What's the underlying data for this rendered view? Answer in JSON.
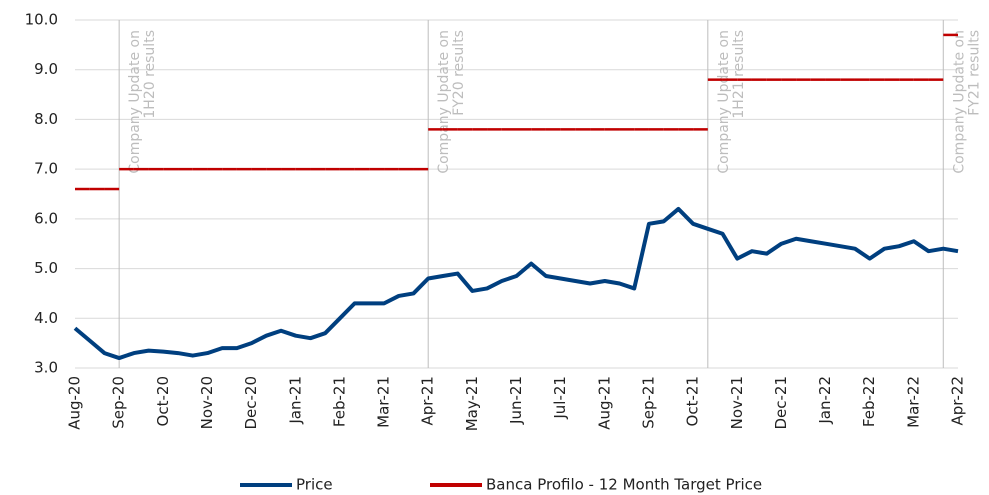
{
  "chart_data": {
    "type": "line",
    "categories": [
      "Aug-20",
      null,
      null,
      "Sep-20",
      null,
      null,
      "Oct-20",
      null,
      null,
      "Nov-20",
      null,
      null,
      "Dec-20",
      null,
      null,
      "Jan-21",
      null,
      null,
      "Feb-21",
      null,
      null,
      "Mar-21",
      null,
      null,
      "Apr-21",
      null,
      null,
      "May-21",
      null,
      null,
      "Jun-21",
      null,
      null,
      "Jul-21",
      null,
      null,
      "Aug-21",
      null,
      null,
      "Sep-21",
      null,
      null,
      "Oct-21",
      null,
      null,
      "Nov-21",
      null,
      null,
      "Dec-21",
      null,
      null,
      "Jan-22",
      null,
      null,
      "Feb-22",
      null,
      null,
      "Mar-22",
      null,
      null,
      "Apr-22"
    ],
    "series": [
      {
        "name": "Price",
        "color": "#003f7f",
        "style": "line",
        "values": [
          3.8,
          3.55,
          3.3,
          3.2,
          3.3,
          3.35,
          3.33,
          3.3,
          3.25,
          3.3,
          3.4,
          3.4,
          3.5,
          3.65,
          3.75,
          3.65,
          3.6,
          3.7,
          4.0,
          4.3,
          4.3,
          4.3,
          4.45,
          4.5,
          4.8,
          4.85,
          4.9,
          4.55,
          4.6,
          4.75,
          4.85,
          5.1,
          4.85,
          4.8,
          4.75,
          4.7,
          4.75,
          4.7,
          4.6,
          5.9,
          5.95,
          6.2,
          5.9,
          5.8,
          5.7,
          5.2,
          5.35,
          5.3,
          5.5,
          5.6,
          5.55,
          5.5,
          5.45,
          5.4,
          5.2,
          5.4,
          5.45,
          5.55,
          5.35,
          5.4,
          5.35
        ]
      },
      {
        "name": "Banca Profilo - 12 Month Target Price",
        "color": "#c00000",
        "style": "step",
        "values": [
          6.6,
          6.6,
          6.6,
          7.0,
          7.0,
          7.0,
          7.0,
          7.0,
          7.0,
          7.0,
          7.0,
          7.0,
          7.0,
          7.0,
          7.0,
          7.0,
          7.0,
          7.0,
          7.0,
          7.0,
          7.0,
          7.0,
          7.0,
          7.0,
          7.8,
          7.8,
          7.8,
          7.8,
          7.8,
          7.8,
          7.8,
          7.8,
          7.8,
          7.8,
          7.8,
          7.8,
          7.8,
          7.8,
          7.8,
          7.8,
          7.8,
          7.8,
          7.8,
          8.8,
          8.8,
          8.8,
          8.8,
          8.8,
          8.8,
          8.8,
          8.8,
          8.8,
          8.8,
          8.8,
          8.8,
          8.8,
          8.8,
          8.8,
          8.8,
          9.7,
          9.7
        ]
      }
    ],
    "annotations": [
      {
        "at": 3,
        "lines": [
          "Company Update on",
          "1H20 results"
        ]
      },
      {
        "at": 24,
        "lines": [
          "Company Update on",
          "FY20 results"
        ]
      },
      {
        "at": 43,
        "lines": [
          "Company Update on",
          "1H21 results"
        ]
      },
      {
        "at": 59,
        "lines": [
          "Company Update on",
          "FY21 results"
        ]
      }
    ],
    "ylim": [
      3.0,
      10.0
    ],
    "yticks": [
      {
        "value": 3,
        "label": "3.0"
      },
      {
        "value": 4,
        "label": "4.0"
      },
      {
        "value": 5,
        "label": "5.0"
      },
      {
        "value": 6,
        "label": "6.0"
      },
      {
        "value": 7,
        "label": "7.0"
      },
      {
        "value": 8,
        "label": "8.0"
      },
      {
        "value": 9,
        "label": "9.0"
      },
      {
        "value": 10,
        "label": "10.0"
      }
    ],
    "grid": true,
    "legend": "bottom"
  }
}
